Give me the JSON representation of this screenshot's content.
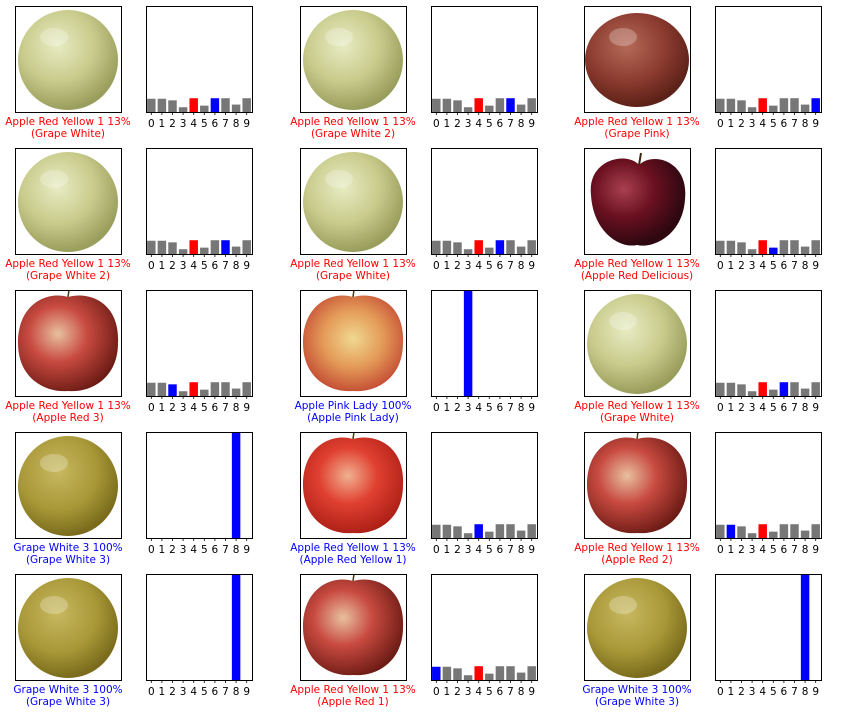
{
  "colors": {
    "correct": "#0000ff",
    "wrong": "#ff0000",
    "other": "#777777"
  },
  "tick_labels": [
    "0",
    "1",
    "2",
    "3",
    "4",
    "5",
    "6",
    "7",
    "8",
    "9"
  ],
  "chart_data": [
    {
      "type": "bar",
      "fruit": "green-grape",
      "label_line1": "Apple Red Yellow 1 13%",
      "label_line2": "(Grape White)",
      "correct": false,
      "predicted": 4,
      "true": 6,
      "values": [
        0.125,
        0.125,
        0.11,
        0.045,
        0.13,
        0.06,
        0.13,
        0.13,
        0.07,
        0.13
      ],
      "ylim": [
        0,
        1
      ]
    },
    {
      "type": "bar",
      "fruit": "green-grape",
      "label_line1": "Apple Red Yellow 1 13%",
      "label_line2": "(Grape White 2)",
      "correct": false,
      "predicted": 4,
      "true": 7,
      "values": [
        0.125,
        0.125,
        0.11,
        0.045,
        0.13,
        0.06,
        0.13,
        0.13,
        0.07,
        0.13
      ],
      "ylim": [
        0,
        1
      ]
    },
    {
      "type": "bar",
      "fruit": "pink-grape",
      "label_line1": "Apple Red Yellow 1 13%",
      "label_line2": "(Grape Pink)",
      "correct": false,
      "predicted": 4,
      "true": 9,
      "values": [
        0.125,
        0.125,
        0.11,
        0.045,
        0.13,
        0.06,
        0.13,
        0.13,
        0.07,
        0.13
      ],
      "ylim": [
        0,
        1
      ]
    },
    {
      "type": "bar",
      "fruit": "green-grape",
      "label_line1": "Apple Red Yellow 1 13%",
      "label_line2": "(Grape White 2)",
      "correct": false,
      "predicted": 4,
      "true": 7,
      "values": [
        0.125,
        0.125,
        0.11,
        0.045,
        0.13,
        0.06,
        0.13,
        0.13,
        0.07,
        0.13
      ],
      "ylim": [
        0,
        1
      ]
    },
    {
      "type": "bar",
      "fruit": "green-grape",
      "label_line1": "Apple Red Yellow 1 13%",
      "label_line2": "(Grape White)",
      "correct": false,
      "predicted": 4,
      "true": 6,
      "values": [
        0.125,
        0.125,
        0.11,
        0.045,
        0.13,
        0.06,
        0.13,
        0.13,
        0.07,
        0.13
      ],
      "ylim": [
        0,
        1
      ]
    },
    {
      "type": "bar",
      "fruit": "dark-apple",
      "label_line1": "Apple Red Yellow 1 13%",
      "label_line2": "(Apple Red Delicious)",
      "correct": false,
      "predicted": 4,
      "true": 5,
      "values": [
        0.125,
        0.125,
        0.11,
        0.045,
        0.13,
        0.06,
        0.13,
        0.13,
        0.07,
        0.13
      ],
      "ylim": [
        0,
        1
      ]
    },
    {
      "type": "bar",
      "fruit": "red-apple",
      "label_line1": "Apple Red Yellow 1 13%",
      "label_line2": "(Apple Red 3)",
      "correct": false,
      "predicted": 4,
      "true": 2,
      "values": [
        0.125,
        0.125,
        0.11,
        0.045,
        0.13,
        0.06,
        0.13,
        0.13,
        0.07,
        0.13
      ],
      "ylim": [
        0,
        1
      ]
    },
    {
      "type": "bar",
      "fruit": "pink-apple",
      "label_line1": "Apple Pink Lady 100%",
      "label_line2": "(Apple Pink Lady)",
      "correct": true,
      "predicted": 3,
      "true": 3,
      "values": [
        0,
        0,
        0,
        1,
        0,
        0,
        0,
        0,
        0,
        0
      ],
      "ylim": [
        0,
        1
      ]
    },
    {
      "type": "bar",
      "fruit": "green-grape",
      "label_line1": "Apple Red Yellow 1 13%",
      "label_line2": "(Grape White)",
      "correct": false,
      "predicted": 4,
      "true": 6,
      "values": [
        0.125,
        0.125,
        0.11,
        0.045,
        0.13,
        0.06,
        0.13,
        0.13,
        0.07,
        0.13
      ],
      "ylim": [
        0,
        1
      ]
    },
    {
      "type": "bar",
      "fruit": "yellow-grape",
      "label_line1": "Grape White 3 100%",
      "label_line2": "(Grape White 3)",
      "correct": true,
      "predicted": 8,
      "true": 8,
      "values": [
        0,
        0,
        0,
        0,
        0,
        0,
        0,
        0,
        1,
        0
      ],
      "ylim": [
        0,
        1
      ]
    },
    {
      "type": "bar",
      "fruit": "red-yellow-apple",
      "label_line1": "Apple Red Yellow 1 13%",
      "label_line2": "(Apple Red Yellow 1)",
      "correct": true,
      "predicted": 4,
      "true": 4,
      "values": [
        0.125,
        0.125,
        0.11,
        0.045,
        0.13,
        0.06,
        0.13,
        0.13,
        0.07,
        0.13
      ],
      "ylim": [
        0,
        1
      ]
    },
    {
      "type": "bar",
      "fruit": "red-apple",
      "label_line1": "Apple Red Yellow 1 13%",
      "label_line2": "(Apple Red 2)",
      "correct": false,
      "predicted": 4,
      "true": 1,
      "values": [
        0.125,
        0.125,
        0.11,
        0.045,
        0.13,
        0.06,
        0.13,
        0.13,
        0.07,
        0.13
      ],
      "ylim": [
        0,
        1
      ]
    },
    {
      "type": "bar",
      "fruit": "yellow-grape",
      "label_line1": "Grape White 3 100%",
      "label_line2": "(Grape White 3)",
      "correct": true,
      "predicted": 8,
      "true": 8,
      "values": [
        0,
        0,
        0,
        0,
        0,
        0,
        0,
        0,
        1,
        0
      ],
      "ylim": [
        0,
        1
      ]
    },
    {
      "type": "bar",
      "fruit": "red-apple",
      "label_line1": "Apple Red Yellow 1 13%",
      "label_line2": "(Apple Red 1)",
      "correct": false,
      "predicted": 4,
      "true": 0,
      "values": [
        0.125,
        0.125,
        0.11,
        0.045,
        0.13,
        0.06,
        0.13,
        0.13,
        0.07,
        0.13
      ],
      "ylim": [
        0,
        1
      ]
    },
    {
      "type": "bar",
      "fruit": "yellow-grape",
      "label_line1": "Grape White 3 100%",
      "label_line2": "(Grape White 3)",
      "correct": true,
      "predicted": 8,
      "true": 8,
      "values": [
        0,
        0,
        0,
        0,
        0,
        0,
        0,
        0,
        1,
        0
      ],
      "ylim": [
        0,
        1
      ]
    }
  ]
}
